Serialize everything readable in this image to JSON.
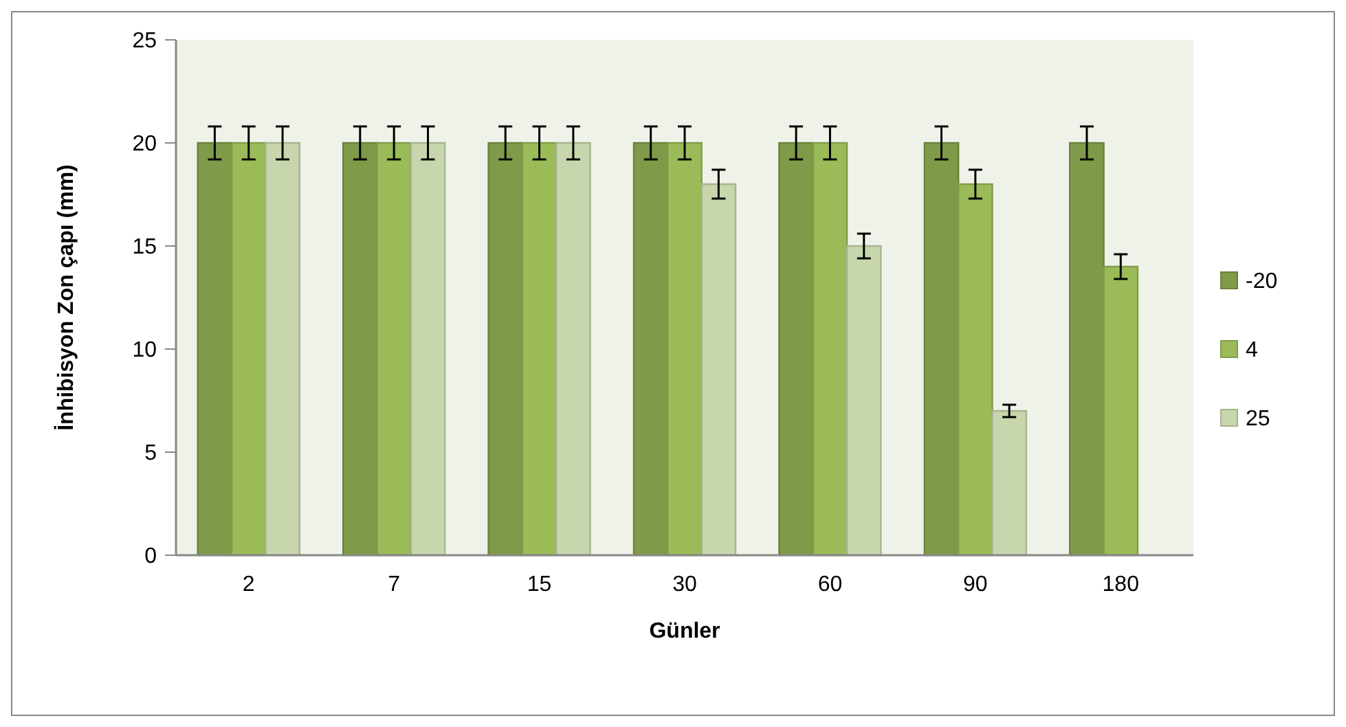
{
  "chart_data": {
    "type": "bar",
    "xlabel": "Günler",
    "ylabel": "İnhibisyon Zon çapı (mm)",
    "categories": [
      "2",
      "7",
      "15",
      "30",
      "60",
      "90",
      "180"
    ],
    "series": [
      {
        "name": "-20",
        "color": "#7f9a48",
        "values": [
          20,
          20,
          20,
          20,
          20,
          20,
          20
        ],
        "errors": [
          0.8,
          0.8,
          0.8,
          0.8,
          0.8,
          0.8,
          0.8
        ]
      },
      {
        "name": "4",
        "color": "#9bbb59",
        "values": [
          20,
          20,
          20,
          20,
          20,
          18,
          14
        ],
        "errors": [
          0.8,
          0.8,
          0.8,
          0.8,
          0.8,
          0.7,
          0.6
        ]
      },
      {
        "name": "25",
        "color": "#c7d6ac",
        "values": [
          20,
          20,
          20,
          18,
          15,
          7,
          0
        ],
        "errors": [
          0.8,
          0.8,
          0.8,
          0.7,
          0.6,
          0.3,
          null
        ]
      }
    ],
    "ylim": [
      0,
      25
    ],
    "yticks": [
      0,
      5,
      10,
      15,
      20,
      25
    ],
    "grid": false,
    "legend": "right"
  }
}
